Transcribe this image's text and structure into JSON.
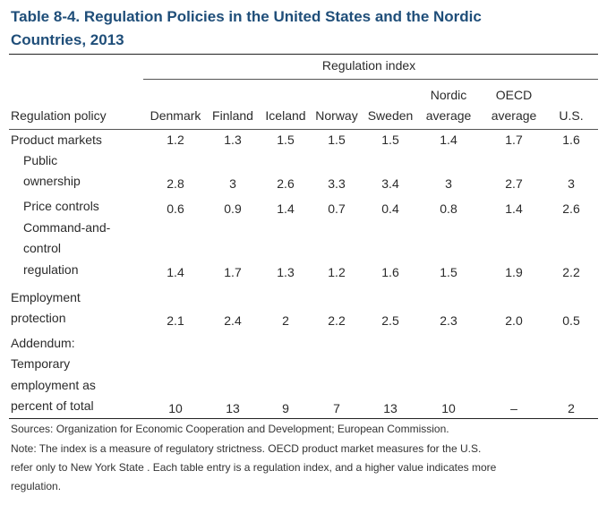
{
  "title_line1": "Table 8-4. Regulation Policies in the United States and the Nordic",
  "title_line2": "Countries, 2013",
  "group_header": "Regulation index",
  "headers": {
    "policy": "Regulation policy",
    "denmark": "Denmark",
    "finland": "Finland",
    "iceland": "Iceland",
    "norway": "Norway",
    "sweden": "Sweden",
    "nordic_1": "Nordic",
    "nordic_2": "average",
    "oecd_1": "OECD",
    "oecd_2": "average",
    "us": "U.S."
  },
  "rows": [
    {
      "label": [
        "Product markets"
      ],
      "values": [
        "1.2",
        "1.3",
        "1.5",
        "1.5",
        "1.5",
        "1.4",
        "1.7",
        "1.6"
      ]
    },
    {
      "label": [
        "Public",
        "ownership"
      ],
      "values": [
        "2.8",
        "3",
        "2.6",
        "3.3",
        "3.4",
        "3",
        "2.7",
        "3"
      ]
    },
    {
      "label": [
        "Price controls"
      ],
      "values": [
        "0.6",
        "0.9",
        "1.4",
        "0.7",
        "0.4",
        "0.8",
        "1.4",
        "2.6"
      ]
    },
    {
      "label": [
        "Command-and-",
        "control",
        "regulation"
      ],
      "values": [
        "1.4",
        "1.7",
        "1.3",
        "1.2",
        "1.6",
        "1.5",
        "1.9",
        "2.2"
      ]
    },
    {
      "label": [
        "Employment",
        "protection"
      ],
      "values": [
        "2.1",
        "2.4",
        "2",
        "2.2",
        "2.5",
        "2.3",
        "2.0",
        "0.5"
      ]
    },
    {
      "label": [
        "Addendum:",
        "Temporary",
        "employment as",
        "percent of total"
      ],
      "values": [
        "10",
        "13",
        "9",
        "7",
        "13",
        "10",
        "–",
        "2"
      ]
    }
  ],
  "sources": "Sources: Organization for Economic Cooperation and Development; European Commission.",
  "note_1": "Note: The index is a measure of regulatory strictness. OECD product market measures for the U.S.",
  "note_2": "refer only to New York State . Each table entry is a regulation index, and a higher value indicates more",
  "note_3": "regulation."
}
